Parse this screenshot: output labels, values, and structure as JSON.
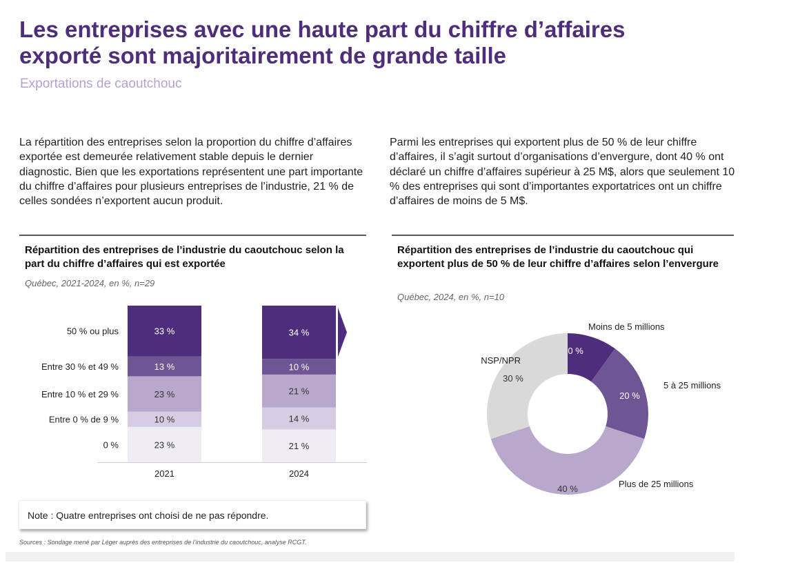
{
  "header": {
    "title": "Les entreprises avec une haute part du chiffre d’affaires exporté sont majoritairement de grande taille",
    "subtitle": "Exportations de caoutchouc"
  },
  "paragraphs": {
    "left": "La répartition des entreprises selon la proportion du chiffre d’affaires exportée est demeurée relativement stable depuis le dernier diagnostic. Bien que les exportations représentent une part importante du chiffre d’affaires pour plusieurs entreprises de l’industrie, 21 % de celles sondées n’exportent aucun produit.",
    "right": "Parmi les entreprises qui exportent plus de 50 % de leur chiffre d’affaires, il s’agit surtout d’organisations d’envergure, dont 40 % ont déclaré un chiffre d’affaires supérieur à 25 M$, alors que seulement 10 % des entreprises qui sont d’importantes exportatrices ont un chiffre d’affaires de moins de 5 M$."
  },
  "colors": {
    "dark_purple": "#4e2e7c",
    "mid_purple": "#6e5593",
    "light_purple": "#b8a8cc",
    "pale_purple": "#d6cde3",
    "very_pale": "#efedf3",
    "grey": "#d9d9d9",
    "title_purple": "#4e2e7c",
    "subtitle_purple": "#b3a2d0"
  },
  "chart_data": [
    {
      "type": "bar",
      "stacked": true,
      "orientation": "vertical",
      "title": "Répartition des entreprises de l’industrie du caoutchouc selon la part du chiffre d’affaires qui est exportée",
      "subtitle": "Québec, 2021-2024, en %, n=29",
      "categories": [
        "2021",
        "2024"
      ],
      "series": [
        {
          "name": "0 %",
          "values": [
            23,
            21
          ],
          "labels": [
            "23 %",
            "21 %"
          ],
          "color": "#efedf3",
          "label_color": "#333333"
        },
        {
          "name": "Entre 0 % de 9 %",
          "values": [
            10,
            14
          ],
          "labels": [
            "10 %",
            "14 %"
          ],
          "color": "#d6cde3",
          "label_color": "#333333"
        },
        {
          "name": "Entre 10 % et 29 %",
          "values": [
            23,
            21
          ],
          "labels": [
            "23 %",
            "21 %"
          ],
          "color": "#b8a8cc",
          "label_color": "#333333"
        },
        {
          "name": "Entre 30 % et 49 %",
          "values": [
            13,
            10
          ],
          "labels": [
            "13 %",
            "10 %"
          ],
          "color": "#6e5593",
          "label_color": "#ffffff"
        },
        {
          "name": "50 % ou plus",
          "values": [
            33,
            34
          ],
          "labels": [
            "33 %",
            "34 %"
          ],
          "color": "#4e2e7c",
          "label_color": "#ffffff"
        }
      ],
      "highlight_arrow_on": "2024 – 50 % ou plus",
      "xlabel": "",
      "ylabel": "",
      "legend": "left (row labels)"
    },
    {
      "type": "pie",
      "donut": true,
      "title": "Répartition des entreprises de l’industrie du caoutchouc qui exportent plus de 50 % de leur chiffre d’affaires selon l’envergure",
      "subtitle": "Québec, 2024, en %, n=10",
      "slices": [
        {
          "name": "Moins de 5 millions",
          "value": 10,
          "label": "10 %",
          "color": "#4e2e7c",
          "label_color": "#ffffff"
        },
        {
          "name": "5 à 25 millions",
          "value": 20,
          "label": "20 %",
          "color": "#6e5593",
          "label_color": "#ffffff"
        },
        {
          "name": "Plus de 25 millions",
          "value": 40,
          "label": "40 %",
          "color": "#b8a8cc",
          "label_color": "#333333"
        },
        {
          "name": "NSP/NPR",
          "value": 30,
          "label": "30 %",
          "color": "#d9d9d9",
          "label_color": "#333333"
        }
      ],
      "start": "top (12 o'clock), clockwise"
    }
  ],
  "note": "Note : Quatre entreprises ont choisi de ne pas répondre.",
  "sources": "Sources : Sondage mené par Léger auprès des entreprises de l’industrie du caoutchouc, analyse RCGT."
}
